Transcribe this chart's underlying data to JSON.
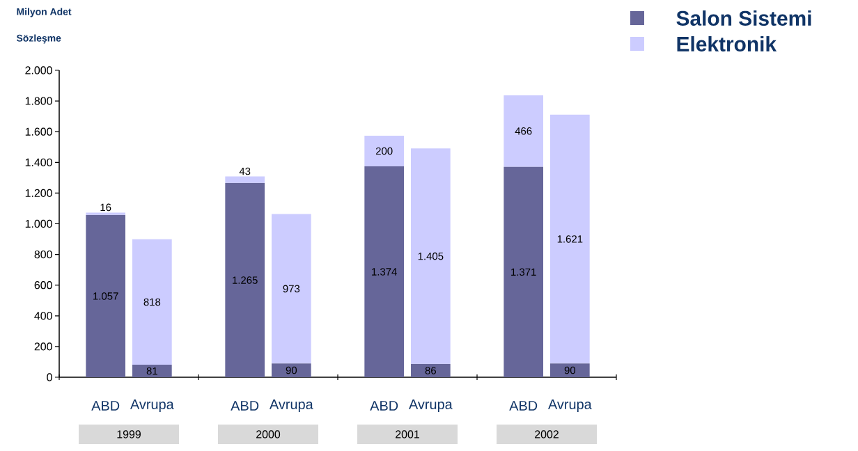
{
  "chart_data": {
    "type": "bar",
    "stacked": true,
    "title": "Milyon Adet",
    "subtitle": "Sözleşme",
    "categories": [
      "ABD",
      "Avrupa",
      "ABD",
      "Avrupa",
      "ABD",
      "Avrupa",
      "ABD",
      "Avrupa"
    ],
    "series": [
      {
        "name": "Salon Sistemi",
        "color": "#666699",
        "values": [
          1057,
          81,
          1265,
          90,
          1374,
          86,
          1371,
          90
        ],
        "value_labels": [
          "1.057",
          "81",
          "1.265",
          "90",
          "1.374",
          "86",
          "1.371",
          "90"
        ]
      },
      {
        "name": "Elektronik",
        "color": "#ccccff",
        "values": [
          16,
          818,
          43,
          973,
          200,
          1405,
          466,
          1621
        ],
        "value_labels": [
          "16",
          "818",
          "43",
          "973",
          "200",
          "1.405",
          "466",
          "1.621"
        ]
      }
    ],
    "annotations": [
      "1999",
      "2000",
      "2001",
      "2002"
    ],
    "ylim": [
      0,
      2000
    ],
    "yticks": [
      {
        "value": 0,
        "label": "0"
      },
      {
        "value": 200,
        "label": "200"
      },
      {
        "value": 400,
        "label": "400"
      },
      {
        "value": 600,
        "label": "600"
      },
      {
        "value": 800,
        "label": "800"
      },
      {
        "value": 1000,
        "label": "1.000"
      },
      {
        "value": 1200,
        "label": "1.200"
      },
      {
        "value": 1400,
        "label": "1.400"
      },
      {
        "value": 1600,
        "label": "1.600"
      },
      {
        "value": 1800,
        "label": "1.800"
      },
      {
        "value": 2000,
        "label": "2.000"
      }
    ],
    "grid": false,
    "legend": "top right"
  }
}
